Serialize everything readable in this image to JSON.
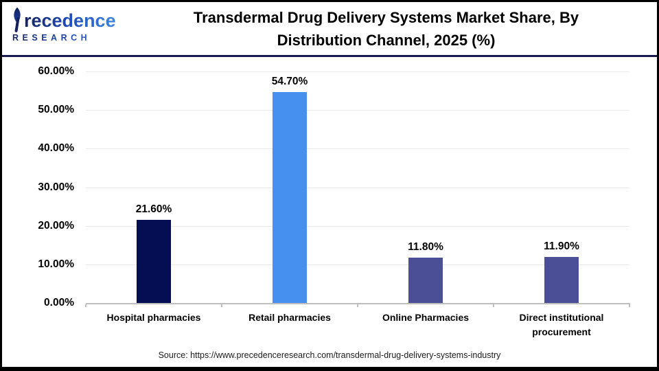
{
  "header": {
    "logo": {
      "brand": "Precedence",
      "brand_display_rest": "recedence",
      "subtitle": "RESEARCH"
    },
    "title_line1": "Transdermal Drug Delivery Systems Market Share, By",
    "title_line2": "Distribution Channel, 2025 (%)"
  },
  "chart_data": {
    "type": "bar",
    "title": "Transdermal Drug Delivery Systems Market Share, By Distribution Channel, 2025 (%)",
    "categories": [
      "Hospital pharmacies",
      "Retail pharmacies",
      "Online Pharmacies",
      "Direct institutional procurement"
    ],
    "values": [
      21.6,
      54.7,
      11.8,
      11.9
    ],
    "labels": [
      "21.60%",
      "54.70%",
      "11.80%",
      "11.90%"
    ],
    "bar_colors": [
      "#050e52",
      "#4691ef",
      "#4b4f96",
      "#4b4f96"
    ],
    "xlabel": "",
    "ylabel": "",
    "ylim": [
      0,
      60
    ],
    "yticks": [
      "0.00%",
      "10.00%",
      "20.00%",
      "30.00%",
      "40.00%",
      "50.00%",
      "60.00%"
    ],
    "grid": true,
    "legend": false
  },
  "footer": {
    "source": "Source: https://www.precedenceresearch.com/transdermal-drug-delivery-systems-industry"
  },
  "colors": {
    "divider_navy": "#181a50",
    "axis_gray": "#bfbfbf",
    "grid_gray": "#e9e9ef",
    "frame_border": "#000000"
  }
}
